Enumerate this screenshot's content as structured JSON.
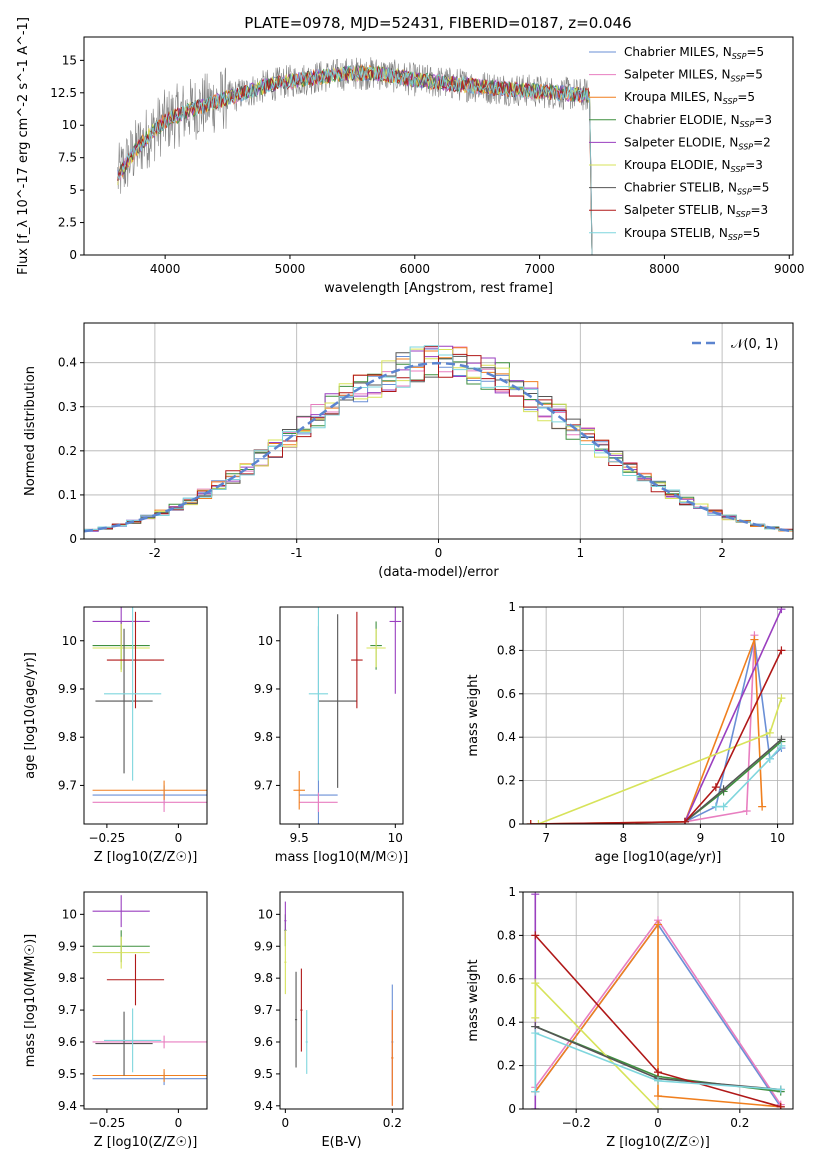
{
  "figure": {
    "title": "PLATE=0978, MJD=52431, FIBERID=0187, z=0.046"
  },
  "series_colors": [
    "#6a8fd6",
    "#e87ec0",
    "#f07f1e",
    "#3f8f3f",
    "#9a3fbf",
    "#d7e35a",
    "#555555",
    "#b01818",
    "#7fd6dd"
  ],
  "chart_data": [
    {
      "id": "spectrum",
      "type": "line",
      "xlabel": "wavelength [Angstrom, rest frame]",
      "ylabel": "Flux [f_λ 10^-17 erg cm^-2 s^-1 A^-1]",
      "xlim": [
        3350,
        9030
      ],
      "ylim": [
        0,
        16.8
      ],
      "xticks": [
        4000,
        5000,
        6000,
        7000,
        8000,
        9000
      ],
      "yticks": [
        0.0,
        2.5,
        5.0,
        7.5,
        10.0,
        12.5,
        15.0
      ],
      "data_color": "#808080",
      "legend_loc": "upper right",
      "legend": [
        {
          "pre": "Chabrier MILES, N",
          "sub": "SSP",
          "post": "=5"
        },
        {
          "pre": "Salpeter MILES, N",
          "sub": "SSP",
          "post": "=5"
        },
        {
          "pre": "Kroupa MILES, N",
          "sub": "SSP",
          "post": "=5"
        },
        {
          "pre": "Chabrier ELODIE, N",
          "sub": "SSP",
          "post": "=3"
        },
        {
          "pre": "Salpeter ELODIE, N",
          "sub": "SSP",
          "post": "=2"
        },
        {
          "pre": "Kroupa ELODIE, N",
          "sub": "SSP",
          "post": "=3"
        },
        {
          "pre": "Chabrier STELIB, N",
          "sub": "SSP",
          "post": "=5"
        },
        {
          "pre": "Salpeter STELIB, N",
          "sub": "SSP",
          "post": "=3"
        },
        {
          "pre": "Kroupa STELIB, N",
          "sub": "SSP",
          "post": "=5"
        }
      ],
      "continuum": {
        "x": [
          3620,
          3700,
          3800,
          3900,
          4000,
          4200,
          4500,
          4800,
          5000,
          5300,
          5500,
          5700,
          6000,
          6300,
          6600,
          7000,
          7400,
          7420
        ],
        "y": [
          6.0,
          7.2,
          8.5,
          9.5,
          10.3,
          11.2,
          12.1,
          13.0,
          13.4,
          13.8,
          14.0,
          14.0,
          13.5,
          13.2,
          12.9,
          12.6,
          12.3,
          0.0
        ]
      }
    },
    {
      "id": "residuals",
      "type": "line",
      "xlabel": "(data-model)/error",
      "ylabel": "Normed distribution",
      "xlim": [
        -2.5,
        2.5
      ],
      "ylim": [
        0,
        0.49
      ],
      "xticks": [
        -2,
        -1,
        0,
        1,
        2
      ],
      "yticks": [
        0.0,
        0.1,
        0.2,
        0.3,
        0.4
      ],
      "grid": true,
      "legend": [
        {
          "label": "𝒩(0, 1)",
          "style": "dashed",
          "color": "#5b84cf"
        }
      ],
      "hist_bins": 50,
      "gaussian": {
        "mean": 0,
        "sigma": 1
      }
    },
    {
      "id": "age-vs-Z",
      "type": "scatter",
      "xlabel": "Z [log10(Z/Z☉)]",
      "ylabel": "age [log10(age/yr)]",
      "xlim": [
        -0.33,
        0.1
      ],
      "ylim": [
        9.62,
        10.07
      ],
      "xticks": [
        -0.25,
        0.0
      ],
      "yticks": [
        9.7,
        9.8,
        9.9,
        10.0
      ],
      "errorbars": [
        {
          "x": -0.05,
          "y": 9.68,
          "xerr": 0.25,
          "yerr": 0.02
        },
        {
          "x": -0.05,
          "y": 9.665,
          "xerr": 0.25,
          "yerr": 0.02
        },
        {
          "x": -0.05,
          "y": 9.69,
          "xerr": 0.25,
          "yerr": 0.02
        },
        {
          "x": -0.2,
          "y": 9.99,
          "xerr": 0.1,
          "yerr": 0.05
        },
        {
          "x": -0.2,
          "y": 10.04,
          "xerr": 0.1,
          "yerr": 0.05
        },
        {
          "x": -0.2,
          "y": 9.985,
          "xerr": 0.1,
          "yerr": 0.05
        },
        {
          "x": -0.19,
          "y": 9.875,
          "xerr": 0.1,
          "yerr": 0.15
        },
        {
          "x": -0.15,
          "y": 9.96,
          "xerr": 0.1,
          "yerr": 0.1
        },
        {
          "x": -0.16,
          "y": 9.89,
          "xerr": 0.1,
          "yerr": 0.18
        }
      ]
    },
    {
      "id": "age-vs-mass",
      "type": "scatter",
      "xlabel": "mass [log10(M/M☉)]",
      "ylabel": "",
      "xlim": [
        9.4,
        10.04
      ],
      "ylim": [
        9.62,
        10.07
      ],
      "xticks": [
        9.5,
        10.0
      ],
      "yticks": [
        9.7,
        9.8,
        9.9,
        10.0
      ],
      "errorbars": [
        {
          "x": 9.6,
          "y": 9.68,
          "xerr": 0.1,
          "yerr": 0.35
        },
        {
          "x": 9.6,
          "y": 9.665,
          "xerr": 0.1,
          "yerr": 0.02
        },
        {
          "x": 9.5,
          "y": 9.69,
          "xerr": 0.03,
          "yerr": 0.04
        },
        {
          "x": 9.9,
          "y": 9.99,
          "xerr": 0.03,
          "yerr": 0.05
        },
        {
          "x": 10.0,
          "y": 10.04,
          "xerr": 0.03,
          "yerr": 0.15
        },
        {
          "x": 9.9,
          "y": 9.985,
          "xerr": 0.05,
          "yerr": 0.04
        },
        {
          "x": 9.7,
          "y": 9.875,
          "xerr": 0.1,
          "yerr": 0.18
        },
        {
          "x": 9.8,
          "y": 9.96,
          "xerr": 0.03,
          "yerr": 0.1
        },
        {
          "x": 9.6,
          "y": 9.89,
          "xerr": 0.05,
          "yerr": 0.18
        }
      ]
    },
    {
      "id": "mass-weight-vs-age",
      "type": "line",
      "xlabel": "age [log10(age/yr)]",
      "ylabel": "mass weight",
      "xlim": [
        6.7,
        10.2
      ],
      "ylim": [
        0,
        1
      ],
      "xticks": [
        7,
        8,
        9,
        10
      ],
      "yticks": [
        0.0,
        0.2,
        0.4,
        0.6,
        0.8,
        1.0
      ],
      "grid": true,
      "series": [
        {
          "x": [
            8.8,
            9.2,
            9.7,
            9.9,
            10.05
          ],
          "y": [
            0.01,
            0.08,
            0.85,
            0.3,
            0.35
          ]
        },
        {
          "x": [
            8.8,
            9.6,
            9.7
          ],
          "y": [
            0.01,
            0.06,
            0.87
          ]
        },
        {
          "x": [
            6.8,
            8.8,
            9.7,
            9.8
          ],
          "y": [
            0.0,
            0.01,
            0.85,
            0.08
          ]
        },
        {
          "x": [
            8.8,
            9.3,
            10.05
          ],
          "y": [
            0.01,
            0.15,
            0.38
          ]
        },
        {
          "x": [
            8.8,
            10.05
          ],
          "y": [
            0.01,
            0.99
          ]
        },
        {
          "x": [
            6.9,
            9.9,
            10.05
          ],
          "y": [
            0.0,
            0.42,
            0.58
          ]
        },
        {
          "x": [
            8.8,
            9.3,
            10.05
          ],
          "y": [
            0.01,
            0.16,
            0.39
          ]
        },
        {
          "x": [
            6.8,
            8.8,
            9.2,
            10.05
          ],
          "y": [
            0.0,
            0.01,
            0.17,
            0.8
          ]
        },
        {
          "x": [
            9.2,
            9.3,
            9.9,
            10.05
          ],
          "y": [
            0.08,
            0.08,
            0.3,
            0.36
          ]
        }
      ]
    },
    {
      "id": "mass-vs-Z",
      "type": "scatter",
      "xlabel": "Z [log10(Z/Z☉)]",
      "ylabel": "mass [log10(M/M☉)]",
      "xlim": [
        -0.33,
        0.1
      ],
      "ylim": [
        9.39,
        10.07
      ],
      "xticks": [
        -0.25,
        0.0
      ],
      "yticks": [
        9.4,
        9.5,
        9.6,
        9.7,
        9.8,
        9.9,
        10.0
      ],
      "errorbars": [
        {
          "x": -0.05,
          "y": 9.485,
          "xerr": 0.25,
          "yerr": 0.02
        },
        {
          "x": -0.05,
          "y": 9.6,
          "xerr": 0.25,
          "yerr": 0.02
        },
        {
          "x": -0.05,
          "y": 9.495,
          "xerr": 0.25,
          "yerr": 0.02
        },
        {
          "x": -0.2,
          "y": 9.9,
          "xerr": 0.1,
          "yerr": 0.05
        },
        {
          "x": -0.2,
          "y": 10.01,
          "xerr": 0.1,
          "yerr": 0.05
        },
        {
          "x": -0.2,
          "y": 9.88,
          "xerr": 0.1,
          "yerr": 0.05
        },
        {
          "x": -0.19,
          "y": 9.595,
          "xerr": 0.1,
          "yerr": 0.1
        },
        {
          "x": -0.15,
          "y": 9.795,
          "xerr": 0.1,
          "yerr": 0.08
        },
        {
          "x": -0.16,
          "y": 9.605,
          "xerr": 0.1,
          "yerr": 0.1
        }
      ]
    },
    {
      "id": "mass-vs-EBV",
      "type": "scatter",
      "xlabel": "E(B-V)",
      "ylabel": "",
      "xlim": [
        -0.01,
        0.22
      ],
      "ylim": [
        9.39,
        10.07
      ],
      "xticks": [
        0.0,
        0.2
      ],
      "yticks": [
        9.4,
        9.5,
        9.6,
        9.7,
        9.8,
        9.9,
        10.0
      ],
      "errorbars": [
        {
          "x": 0.2,
          "y": 9.6,
          "xerr": 0.002,
          "yerr": 0.18
        },
        {
          "x": 0.2,
          "y": 9.55,
          "xerr": 0.002,
          "yerr": 0.15
        },
        {
          "x": 0.2,
          "y": 9.55,
          "xerr": 0.002,
          "yerr": 0.15
        },
        {
          "x": 0.0,
          "y": 9.95,
          "xerr": 0.002,
          "yerr": 0.05
        },
        {
          "x": 0.0,
          "y": 9.98,
          "xerr": 0.002,
          "yerr": 0.06
        },
        {
          "x": 0.0,
          "y": 9.85,
          "xerr": 0.002,
          "yerr": 0.1
        },
        {
          "x": 0.02,
          "y": 9.67,
          "xerr": 0.002,
          "yerr": 0.15
        },
        {
          "x": 0.03,
          "y": 9.7,
          "xerr": 0.002,
          "yerr": 0.13
        },
        {
          "x": 0.04,
          "y": 9.6,
          "xerr": 0.002,
          "yerr": 0.1
        }
      ]
    },
    {
      "id": "mass-weight-vs-Z",
      "type": "line",
      "xlabel": "Z [log10(Z/Z☉)]",
      "ylabel": "mass weight",
      "xlim": [
        -0.33,
        0.33
      ],
      "ylim": [
        0,
        1
      ],
      "xticks": [
        -0.2,
        0.0,
        0.2
      ],
      "yticks": [
        0.0,
        0.2,
        0.4,
        0.6,
        0.8,
        1.0
      ],
      "grid": true,
      "series": [
        {
          "x": [
            -0.3,
            0.0,
            0.3
          ],
          "y": [
            0.08,
            0.85,
            0.01
          ]
        },
        {
          "x": [
            -0.3,
            0.0,
            0.3
          ],
          "y": [
            0.1,
            0.87,
            0.02
          ]
        },
        {
          "x": [
            -0.3,
            0.0,
            0.0,
            0.3
          ],
          "y": [
            0.08,
            0.85,
            0.06,
            0.01
          ]
        },
        {
          "x": [
            -0.3,
            0.0,
            0.3
          ],
          "y": [
            0.38,
            0.15,
            0.08
          ]
        },
        {
          "x": [
            -0.3,
            -0.3
          ],
          "y": [
            0.0,
            0.99
          ]
        },
        {
          "x": [
            -0.3,
            -0.3,
            0.0
          ],
          "y": [
            0.42,
            0.58,
            0.0
          ]
        },
        {
          "x": [
            -0.3,
            0.0,
            0.3
          ],
          "y": [
            0.38,
            0.14,
            0.09
          ]
        },
        {
          "x": [
            -0.3,
            0.0,
            0.3
          ],
          "y": [
            0.8,
            0.17,
            0.01
          ]
        },
        {
          "x": [
            -0.3,
            -0.3,
            0.0,
            0.3
          ],
          "y": [
            0.08,
            0.35,
            0.13,
            0.09
          ]
        }
      ]
    }
  ]
}
